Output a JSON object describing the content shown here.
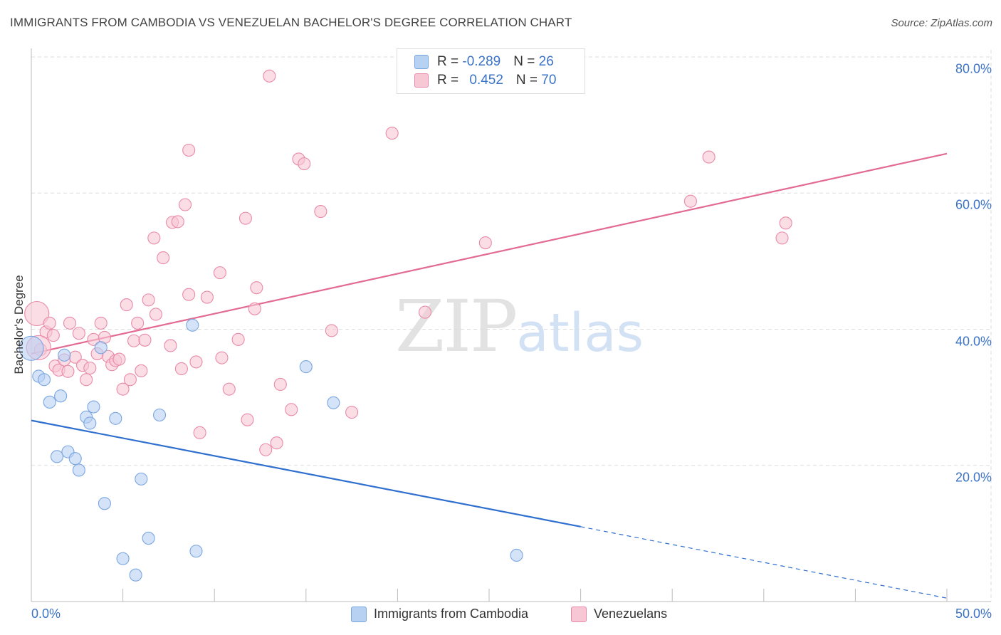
{
  "title": "IMMIGRANTS FROM CAMBODIA VS VENEZUELAN BACHELOR'S DEGREE CORRELATION CHART",
  "source": "Source: ZipAtlas.com",
  "watermark": {
    "zip": "ZIP",
    "atlas": "atlas"
  },
  "colors": {
    "blue_fill": "#b7d1f3",
    "blue_stroke": "#7aa6e0",
    "blue_line": "#2f6fcf",
    "pink_fill": "#f8c7d6",
    "pink_stroke": "#e98aa8",
    "pink_line": "#e26a93",
    "axis_text": "#3b73c7",
    "grid": "#dddddd"
  },
  "legend": {
    "rows": [
      {
        "r_label": "R = ",
        "r_value": "-0.289",
        "n_label": "N = ",
        "n_value": "26"
      },
      {
        "r_label": "R = ",
        "r_value": "0.452",
        "n_label": "N = ",
        "n_value": "70"
      }
    ]
  },
  "chart_data": {
    "type": "scatter",
    "title": "IMMIGRANTS FROM CAMBODIA VS VENEZUELAN BACHELOR'S DEGREE CORRELATION CHART",
    "xlabel": "",
    "ylabel": "Bachelor's Degree",
    "xlim": [
      0,
      50
    ],
    "ylim": [
      0,
      80
    ],
    "x_tick_labels": [
      "0.0%",
      "50.0%"
    ],
    "y_ticks": [
      20,
      40,
      60,
      80
    ],
    "y_tick_labels": [
      "20.0%",
      "40.0%",
      "60.0%",
      "80.0%"
    ],
    "grid": true,
    "legend_position": "top-center",
    "series": [
      {
        "name": "Immigrants from Cambodia",
        "color": "#7aa6e0",
        "R": -0.289,
        "N": 26,
        "trend": {
          "x0": 0,
          "y0": 26.6,
          "x1": 30,
          "y1": 11.0,
          "dashed_to_x": 50,
          "dashed_to_y": 0.5
        },
        "points": [
          [
            0.0,
            37.2,
            "large"
          ],
          [
            0.4,
            33.1
          ],
          [
            0.7,
            32.6
          ],
          [
            1.0,
            29.3
          ],
          [
            1.4,
            21.3
          ],
          [
            1.6,
            30.2
          ],
          [
            1.8,
            36.2
          ],
          [
            2.0,
            22.0
          ],
          [
            2.4,
            21.0
          ],
          [
            2.6,
            19.3
          ],
          [
            3.0,
            27.1
          ],
          [
            3.2,
            26.2
          ],
          [
            3.4,
            28.6
          ],
          [
            3.8,
            37.3
          ],
          [
            4.0,
            14.4
          ],
          [
            4.6,
            26.9
          ],
          [
            5.0,
            6.3
          ],
          [
            5.7,
            3.9
          ],
          [
            6.0,
            18.0
          ],
          [
            6.4,
            9.3
          ],
          [
            7.0,
            27.4
          ],
          [
            8.8,
            40.6
          ],
          [
            9.0,
            7.4
          ],
          [
            15.0,
            34.5
          ],
          [
            16.5,
            29.2
          ],
          [
            26.5,
            6.8
          ]
        ]
      },
      {
        "name": "Venezuelans",
        "color": "#e98aa8",
        "R": 0.452,
        "N": 70,
        "trend": {
          "x0": 0,
          "y0": 36.4,
          "x1": 50,
          "y1": 65.8
        },
        "points": [
          [
            0.3,
            42.3,
            "large"
          ],
          [
            0.5,
            37.0
          ],
          [
            0.8,
            39.6
          ],
          [
            1.0,
            40.9
          ],
          [
            1.2,
            39.1
          ],
          [
            1.3,
            34.6
          ],
          [
            1.5,
            34.0
          ],
          [
            1.8,
            35.5
          ],
          [
            2.0,
            33.8
          ],
          [
            2.1,
            40.9
          ],
          [
            2.4,
            35.9
          ],
          [
            2.6,
            39.4
          ],
          [
            2.8,
            34.7
          ],
          [
            3.0,
            32.6
          ],
          [
            3.2,
            34.3
          ],
          [
            3.4,
            38.5
          ],
          [
            3.6,
            36.4
          ],
          [
            3.8,
            40.9
          ],
          [
            4.0,
            38.8
          ],
          [
            4.2,
            36.0
          ],
          [
            4.4,
            34.8
          ],
          [
            4.6,
            35.4
          ],
          [
            4.8,
            35.6
          ],
          [
            5.0,
            31.2
          ],
          [
            5.2,
            43.6
          ],
          [
            5.4,
            32.6
          ],
          [
            5.6,
            38.3
          ],
          [
            5.8,
            40.9
          ],
          [
            6.0,
            33.9
          ],
          [
            6.2,
            38.4
          ],
          [
            6.4,
            44.3
          ],
          [
            6.7,
            53.4
          ],
          [
            6.8,
            42.2
          ],
          [
            7.2,
            50.5
          ],
          [
            7.6,
            37.6
          ],
          [
            7.7,
            55.7
          ],
          [
            8.0,
            55.8
          ],
          [
            8.2,
            34.2
          ],
          [
            8.4,
            58.3
          ],
          [
            8.6,
            66.3
          ],
          [
            8.6,
            45.1
          ],
          [
            9.0,
            35.2
          ],
          [
            9.2,
            24.8
          ],
          [
            9.6,
            44.7
          ],
          [
            10.3,
            48.3
          ],
          [
            10.4,
            35.8
          ],
          [
            10.8,
            31.2
          ],
          [
            11.3,
            38.5
          ],
          [
            11.7,
            56.3
          ],
          [
            11.8,
            26.7
          ],
          [
            12.3,
            46.1
          ],
          [
            12.2,
            43.0
          ],
          [
            12.8,
            22.3
          ],
          [
            13.0,
            77.2
          ],
          [
            13.4,
            23.3
          ],
          [
            13.6,
            31.9
          ],
          [
            14.2,
            28.2
          ],
          [
            14.6,
            65.0
          ],
          [
            14.9,
            64.3
          ],
          [
            15.8,
            57.3
          ],
          [
            16.4,
            39.8
          ],
          [
            17.5,
            27.8
          ],
          [
            19.7,
            68.8
          ],
          [
            21.5,
            42.5
          ],
          [
            24.8,
            52.7
          ],
          [
            36.0,
            58.8
          ],
          [
            37.0,
            65.3
          ],
          [
            41.0,
            53.4
          ],
          [
            41.2,
            55.6
          ],
          [
            0.4,
            37.3,
            "large"
          ]
        ]
      }
    ]
  },
  "bottom_legend": [
    {
      "label": "Immigrants from Cambodia"
    },
    {
      "label": "Venezuelans"
    }
  ]
}
